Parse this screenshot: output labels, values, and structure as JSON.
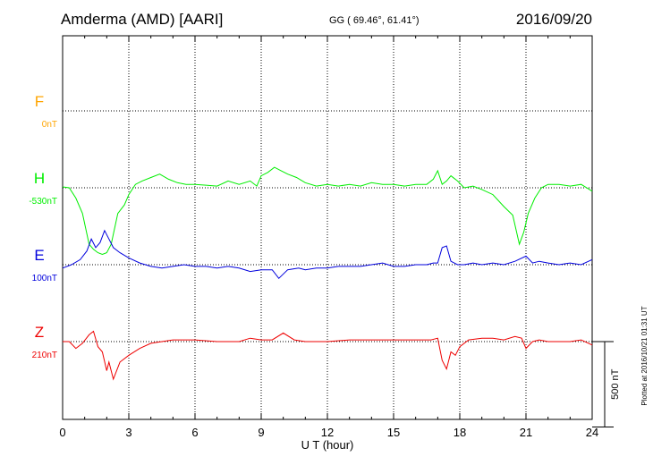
{
  "header": {
    "station": "Amderma (AMD)  [AARI]",
    "coords": "GG ( 69.46°,  61.41°)",
    "date": "2016/09/20"
  },
  "footer_note": "Plotted at 2016/10/21 01:31 UT",
  "chart_data": {
    "type": "line",
    "xlabel": "U T (hour)",
    "xlim": [
      0,
      24
    ],
    "xticks": [
      "0",
      "3",
      "6",
      "9",
      "12",
      "15",
      "18",
      "21",
      "24"
    ],
    "scale_bar_label": "500 nT",
    "scale_bar_nT": 500,
    "baseline_spacing_nT": 450,
    "grid": true,
    "series": [
      {
        "name": "F",
        "baseline_label": "0nT",
        "color": "#ffa500",
        "x": [],
        "y": []
      },
      {
        "name": "H",
        "baseline_label": "-530nT",
        "color": "#00ee00",
        "x": [
          0,
          0.3,
          0.6,
          0.9,
          1.2,
          1.4,
          1.6,
          1.8,
          2.0,
          2.2,
          2.5,
          2.8,
          3.0,
          3.3,
          3.6,
          4.0,
          4.4,
          4.8,
          5.2,
          5.6,
          6.0,
          6.5,
          7.0,
          7.5,
          8.0,
          8.5,
          8.8,
          9.0,
          9.3,
          9.6,
          9.9,
          10.2,
          10.6,
          11.0,
          11.5,
          12.0,
          12.5,
          13.0,
          13.5,
          14.0,
          14.5,
          15.0,
          15.5,
          16.0,
          16.5,
          16.8,
          17.0,
          17.2,
          17.4,
          17.6,
          17.9,
          18.2,
          18.6,
          19.0,
          19.5,
          20.0,
          20.4,
          20.7,
          20.9,
          21.1,
          21.4,
          21.7,
          22.0,
          22.5,
          23.0,
          23.5,
          24.0
        ],
        "y": [
          5,
          0,
          -60,
          -150,
          -330,
          -360,
          -380,
          -390,
          -380,
          -330,
          -150,
          -100,
          -40,
          20,
          40,
          60,
          80,
          50,
          30,
          20,
          20,
          15,
          10,
          40,
          20,
          40,
          10,
          70,
          90,
          120,
          100,
          80,
          60,
          30,
          10,
          20,
          10,
          20,
          10,
          30,
          20,
          20,
          10,
          20,
          20,
          50,
          100,
          20,
          40,
          70,
          40,
          0,
          10,
          -10,
          -40,
          -110,
          -160,
          -330,
          -260,
          -150,
          -60,
          0,
          20,
          20,
          10,
          20,
          -20
        ]
      },
      {
        "name": "E",
        "baseline_label": "100nT",
        "color": "#0000dd",
        "x": [
          0,
          0.4,
          0.8,
          1.1,
          1.3,
          1.5,
          1.7,
          1.9,
          2.1,
          2.3,
          2.6,
          3.0,
          3.5,
          4.0,
          4.5,
          5.0,
          5.5,
          6.0,
          6.5,
          7.0,
          7.5,
          8.0,
          8.5,
          9.0,
          9.5,
          9.8,
          10.2,
          10.7,
          11.0,
          11.5,
          12.0,
          12.5,
          13.0,
          13.5,
          14.0,
          14.5,
          15.0,
          15.5,
          16.0,
          16.5,
          16.8,
          17.0,
          17.2,
          17.4,
          17.6,
          17.9,
          18.2,
          18.6,
          19.0,
          19.5,
          20.0,
          20.5,
          21.0,
          21.3,
          21.6,
          22.0,
          22.5,
          23.0,
          23.5,
          24.0
        ],
        "y": [
          -20,
          0,
          30,
          80,
          150,
          100,
          130,
          200,
          150,
          100,
          70,
          40,
          10,
          -10,
          -20,
          -10,
          0,
          -10,
          -10,
          -20,
          -10,
          -20,
          -40,
          -30,
          -30,
          -80,
          -30,
          -20,
          -30,
          -20,
          -20,
          -10,
          -10,
          -10,
          0,
          10,
          -10,
          -10,
          0,
          0,
          10,
          10,
          100,
          110,
          20,
          0,
          0,
          10,
          0,
          10,
          0,
          20,
          50,
          10,
          20,
          10,
          0,
          10,
          0,
          30
        ]
      },
      {
        "name": "Z",
        "baseline_label": "210nT",
        "color": "#ee0000",
        "x": [
          0,
          0.3,
          0.6,
          0.9,
          1.2,
          1.4,
          1.6,
          1.8,
          2.0,
          2.1,
          2.3,
          2.6,
          3.0,
          3.5,
          4.0,
          4.5,
          5.0,
          5.5,
          6.0,
          7.0,
          8.0,
          8.5,
          9.0,
          9.5,
          10.0,
          10.5,
          11.0,
          12.0,
          13.0,
          14.0,
          15.0,
          16.0,
          16.7,
          17.0,
          17.2,
          17.4,
          17.6,
          17.8,
          18.0,
          18.4,
          19.0,
          19.5,
          20.0,
          20.5,
          20.8,
          21.0,
          21.3,
          21.6,
          22.0,
          23.0,
          23.5,
          24.0
        ],
        "y": [
          0,
          0,
          -40,
          -10,
          40,
          60,
          -30,
          -60,
          -170,
          -120,
          -220,
          -120,
          -80,
          -40,
          -10,
          0,
          10,
          10,
          10,
          0,
          0,
          20,
          10,
          10,
          50,
          10,
          0,
          0,
          10,
          10,
          10,
          10,
          10,
          20,
          -110,
          -160,
          -60,
          -80,
          -30,
          10,
          20,
          20,
          10,
          30,
          20,
          -40,
          0,
          10,
          0,
          0,
          10,
          -20
        ]
      }
    ]
  }
}
